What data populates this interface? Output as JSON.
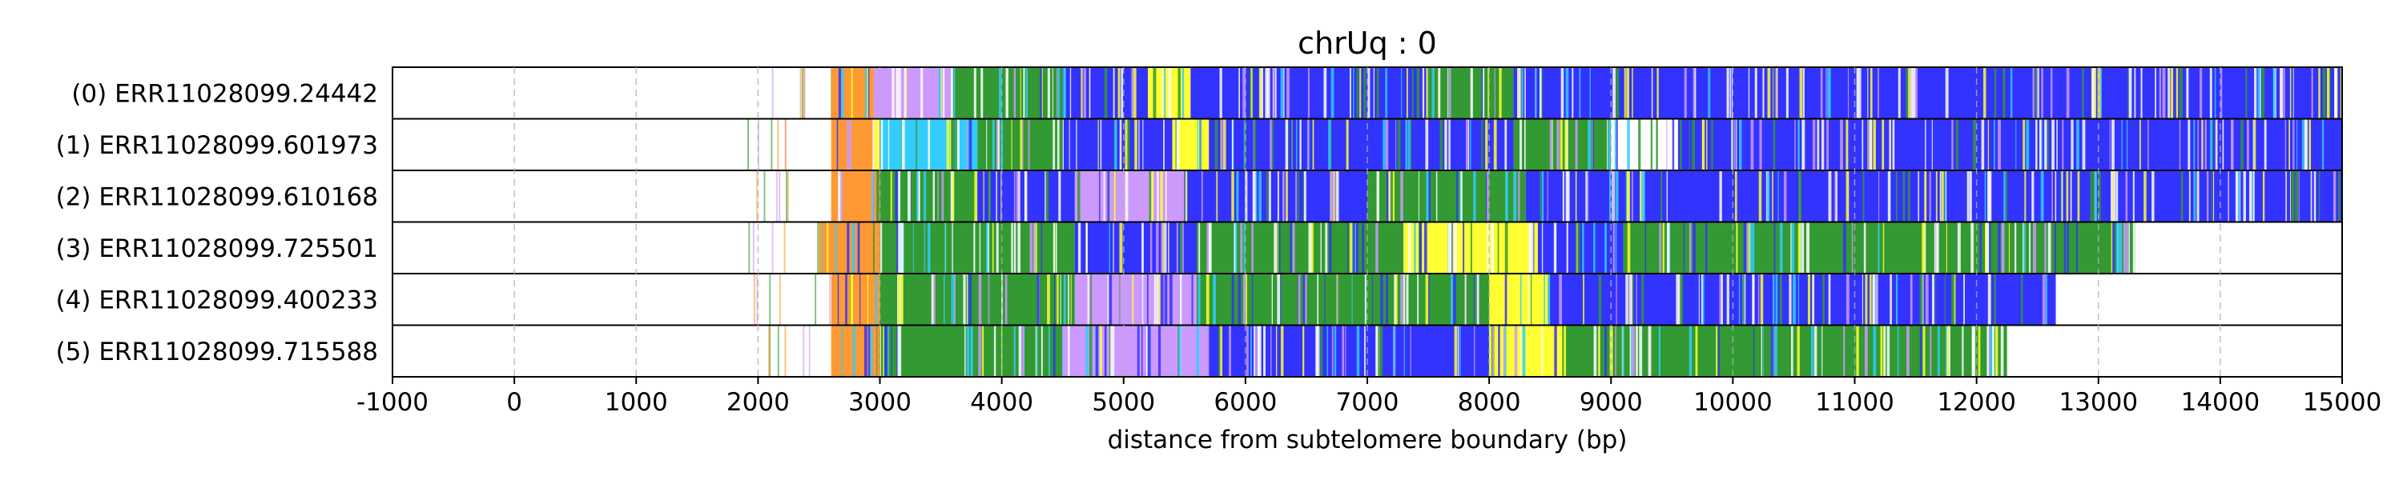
{
  "chart_data": {
    "type": "heatmap",
    "title": "chrUq : 0",
    "xlabel": "distance from subtelomere boundary (bp)",
    "xlim": [
      -1000,
      15000
    ],
    "xticks": [
      -1000,
      0,
      1000,
      2000,
      3000,
      4000,
      5000,
      6000,
      7000,
      8000,
      9000,
      10000,
      11000,
      12000,
      13000,
      14000,
      15000
    ],
    "grid": "vertical-dashed",
    "colors": {
      "blue": "#3333ff",
      "green": "#339933",
      "yellow": "#ffff33",
      "cyan": "#33ccff",
      "violet": "#cc99ff",
      "orange": "#ff9933",
      "white": "#ffffff",
      "grid": "#b0b0b0"
    },
    "rows": [
      {
        "label": "(0) ERR11028099.24442",
        "read_start": 1900,
        "read_end": 15000,
        "segments": [
          {
            "start": 2600,
            "end": 2950,
            "color": "orange"
          },
          {
            "start": 2950,
            "end": 3600,
            "color": "violet"
          },
          {
            "start": 3600,
            "end": 4500,
            "color": "green"
          },
          {
            "start": 4500,
            "end": 5200,
            "color": "blue"
          },
          {
            "start": 5200,
            "end": 5550,
            "color": "yellow"
          },
          {
            "start": 5550,
            "end": 7500,
            "color": "blue"
          },
          {
            "start": 7500,
            "end": 8200,
            "color": "green"
          },
          {
            "start": 8200,
            "end": 15000,
            "color": "blue"
          }
        ]
      },
      {
        "label": "(1) ERR11028099.601973",
        "read_start": 1850,
        "read_end": 15000,
        "segments": [
          {
            "start": 2600,
            "end": 3000,
            "color": "orange"
          },
          {
            "start": 3000,
            "end": 3800,
            "color": "cyan"
          },
          {
            "start": 3800,
            "end": 4500,
            "color": "green"
          },
          {
            "start": 4500,
            "end": 5400,
            "color": "blue"
          },
          {
            "start": 5400,
            "end": 5700,
            "color": "yellow"
          },
          {
            "start": 5700,
            "end": 8200,
            "color": "blue"
          },
          {
            "start": 8200,
            "end": 9000,
            "color": "green"
          },
          {
            "start": 9000,
            "end": 9550,
            "color": "white"
          },
          {
            "start": 9550,
            "end": 15000,
            "color": "blue"
          }
        ]
      },
      {
        "label": "(2) ERR11028099.610168",
        "read_start": 1900,
        "read_end": 15000,
        "segments": [
          {
            "start": 2600,
            "end": 3000,
            "color": "orange"
          },
          {
            "start": 3000,
            "end": 3800,
            "color": "green"
          },
          {
            "start": 3800,
            "end": 4600,
            "color": "blue"
          },
          {
            "start": 4600,
            "end": 5500,
            "color": "violet"
          },
          {
            "start": 5500,
            "end": 7000,
            "color": "blue"
          },
          {
            "start": 7000,
            "end": 8300,
            "color": "green"
          },
          {
            "start": 8300,
            "end": 15000,
            "color": "blue"
          }
        ]
      },
      {
        "label": "(3) ERR11028099.725501",
        "read_start": 1800,
        "read_end": 13300,
        "segments": [
          {
            "start": 2500,
            "end": 3000,
            "color": "orange"
          },
          {
            "start": 3000,
            "end": 4600,
            "color": "green"
          },
          {
            "start": 4600,
            "end": 5600,
            "color": "blue"
          },
          {
            "start": 5600,
            "end": 7300,
            "color": "green"
          },
          {
            "start": 7300,
            "end": 8400,
            "color": "yellow"
          },
          {
            "start": 8400,
            "end": 9100,
            "color": "blue"
          },
          {
            "start": 9100,
            "end": 13300,
            "color": "green"
          }
        ]
      },
      {
        "label": "(4) ERR11028099.400233",
        "read_start": 1900,
        "read_end": 12650,
        "segments": [
          {
            "start": 2600,
            "end": 3000,
            "color": "orange"
          },
          {
            "start": 3000,
            "end": 4600,
            "color": "green"
          },
          {
            "start": 4600,
            "end": 5600,
            "color": "violet"
          },
          {
            "start": 5600,
            "end": 8000,
            "color": "green"
          },
          {
            "start": 8000,
            "end": 8500,
            "color": "yellow"
          },
          {
            "start": 8500,
            "end": 12650,
            "color": "blue"
          }
        ]
      },
      {
        "label": "(5) ERR11028099.715588",
        "read_start": 1850,
        "read_end": 12250,
        "segments": [
          {
            "start": 2600,
            "end": 3000,
            "color": "orange"
          },
          {
            "start": 3000,
            "end": 4500,
            "color": "green"
          },
          {
            "start": 4500,
            "end": 5700,
            "color": "violet"
          },
          {
            "start": 5700,
            "end": 8000,
            "color": "blue"
          },
          {
            "start": 8000,
            "end": 8600,
            "color": "yellow"
          },
          {
            "start": 8600,
            "end": 12250,
            "color": "green"
          }
        ]
      }
    ]
  }
}
